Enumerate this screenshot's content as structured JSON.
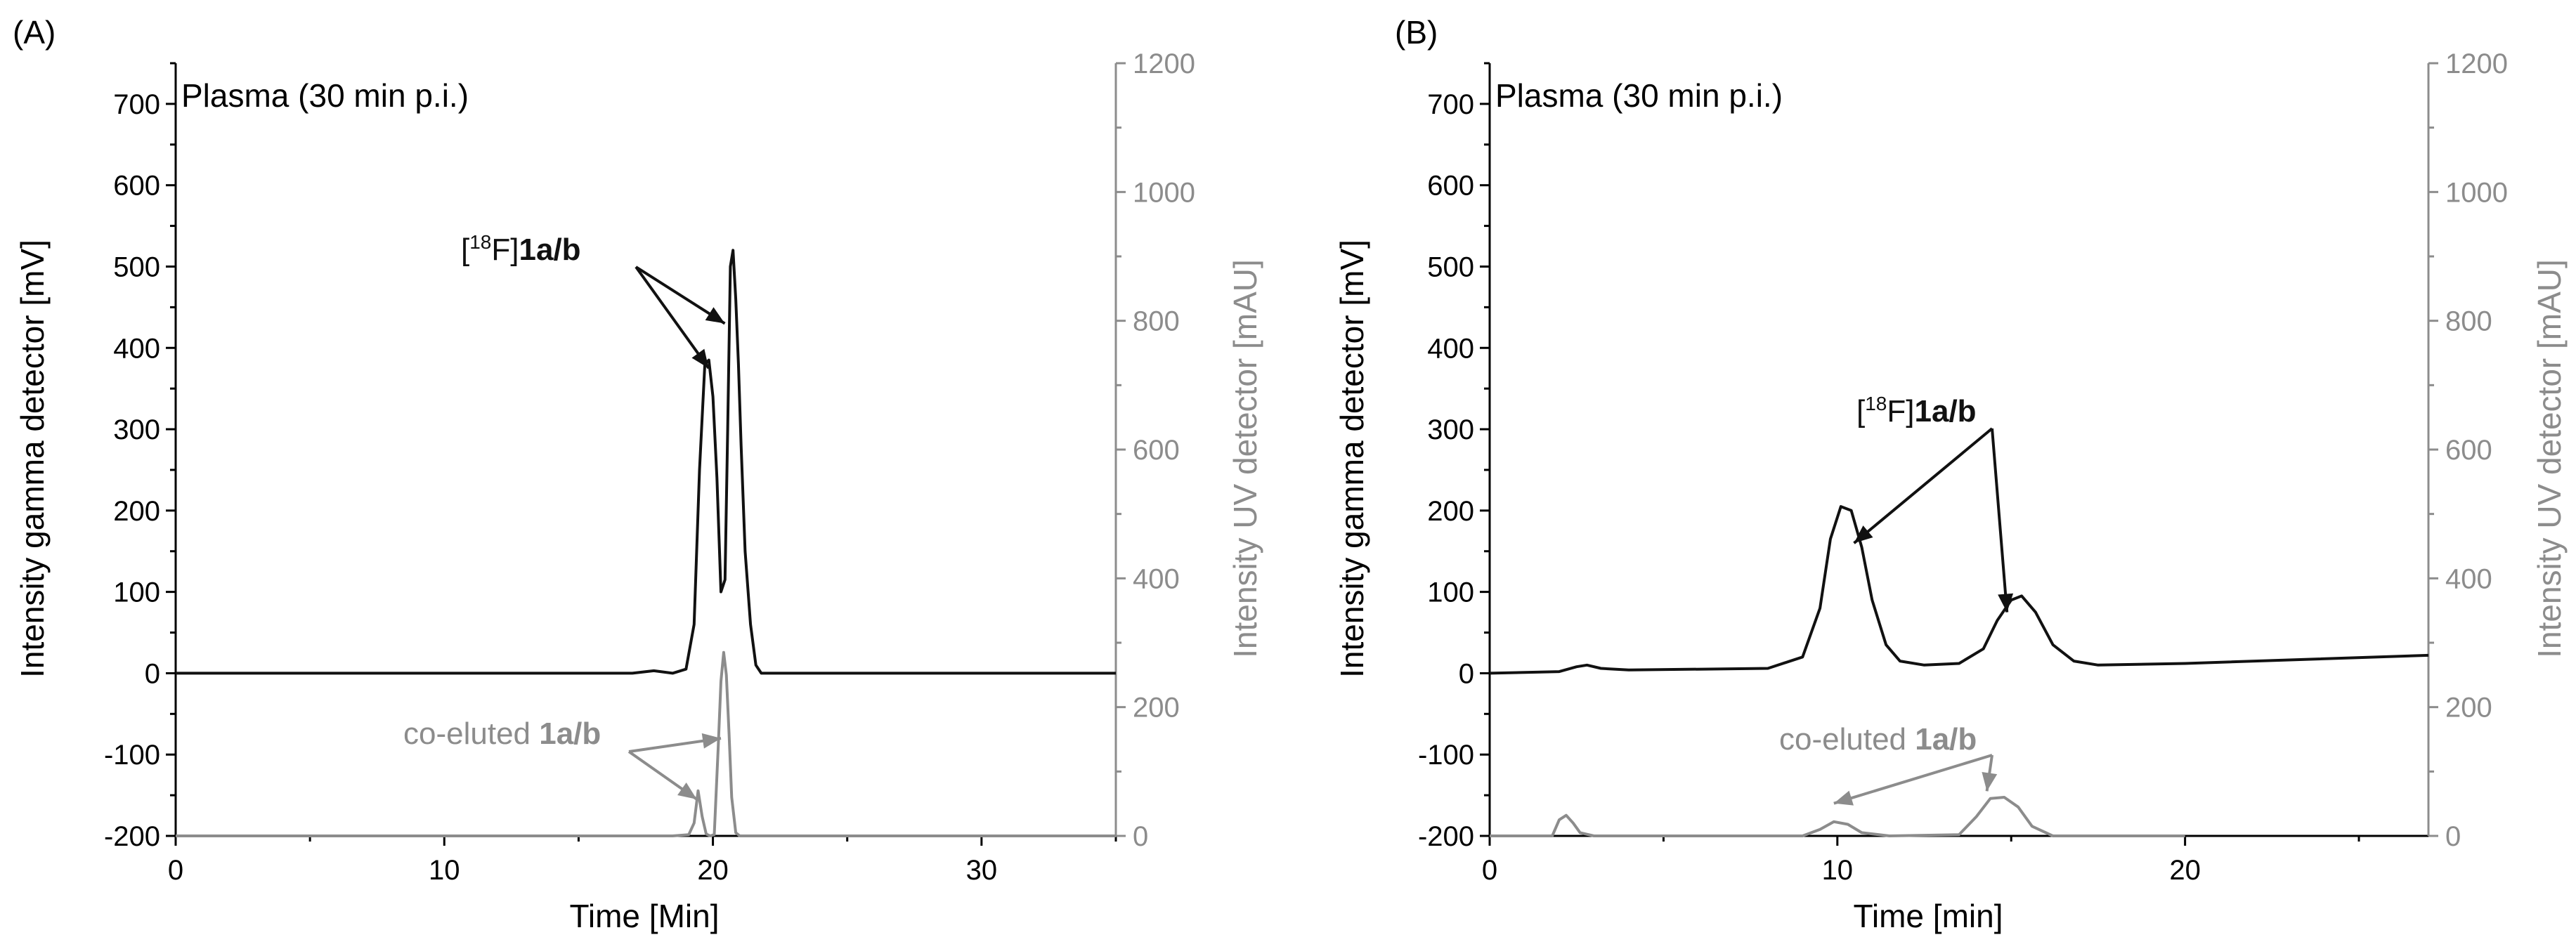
{
  "chart_data": [
    {
      "type": "line",
      "panel_label": "(A)",
      "title": "Plasma (30 min p.i.)",
      "xlabel": "Time [Min]",
      "ylabel_left": "Intensity gamma detector [mV]",
      "ylabel_right": "Intensity UV detector [mAU]",
      "xlim": [
        0,
        35
      ],
      "ylim_left": [
        -200,
        750
      ],
      "ylim_right": [
        0,
        1200
      ],
      "x_ticks": [
        0,
        10,
        20,
        30
      ],
      "y_left_ticks": [
        -200,
        -100,
        0,
        100,
        200,
        300,
        400,
        500,
        600,
        700
      ],
      "y_right_ticks": [
        0,
        200,
        400,
        600,
        800,
        1000,
        1200
      ],
      "colors": {
        "gamma": "#111111",
        "uv": "#8c8c8c"
      },
      "series": [
        {
          "name": "gamma",
          "axis": "left",
          "x": [
            0,
            17.0,
            17.8,
            18.5,
            19.0,
            19.3,
            19.5,
            19.7,
            19.85,
            20.0,
            20.15,
            20.3,
            20.45,
            20.55,
            20.65,
            20.75,
            20.85,
            20.95,
            21.05,
            21.2,
            21.4,
            21.6,
            21.8,
            22.2,
            35
          ],
          "values": [
            0,
            0,
            3,
            0,
            5,
            60,
            250,
            380,
            385,
            340,
            240,
            100,
            115,
            300,
            500,
            520,
            460,
            380,
            280,
            150,
            60,
            10,
            0,
            0,
            0
          ]
        },
        {
          "name": "uv",
          "axis": "right",
          "x": [
            0,
            18.5,
            19.1,
            19.3,
            19.45,
            19.6,
            19.75,
            19.9,
            20.05,
            20.2,
            20.3,
            20.4,
            20.5,
            20.6,
            20.7,
            20.85,
            21.0,
            35
          ],
          "values": [
            0,
            0,
            2,
            20,
            70,
            30,
            3,
            0,
            2,
            140,
            240,
            285,
            250,
            160,
            60,
            5,
            0,
            0
          ]
        }
      ],
      "annotations": [
        {
          "text_prefix": "[",
          "sup": "18",
          "text_mid": "F]",
          "text_bold": "1a/b",
          "arrow_targets": [
            [
              20.0,
              375
            ],
            [
              20.6,
              430
            ]
          ]
        },
        {
          "text": "co-eluted ",
          "text_bold": "1a/b",
          "arrow_targets": [
            [
              19.4,
              -155
            ],
            [
              20.3,
              -80
            ]
          ]
        }
      ]
    },
    {
      "type": "line",
      "panel_label": "(B)",
      "title": "Plasma (30 min p.i.)",
      "xlabel": "Time [min]",
      "ylabel_left": "Intensity gamma detector [mV]",
      "ylabel_right": "Intensity UV detector [mAU]",
      "xlim": [
        0,
        27
      ],
      "ylim_left": [
        -200,
        750
      ],
      "ylim_right": [
        0,
        1200
      ],
      "x_ticks": [
        0,
        10,
        20
      ],
      "y_left_ticks": [
        -200,
        -100,
        0,
        100,
        200,
        300,
        400,
        500,
        600,
        700
      ],
      "y_right_ticks": [
        0,
        200,
        400,
        600,
        800,
        1000,
        1200
      ],
      "colors": {
        "gamma": "#111111",
        "uv": "#8c8c8c"
      },
      "series": [
        {
          "name": "gamma",
          "axis": "left",
          "x": [
            0,
            2.0,
            2.5,
            2.8,
            3.2,
            4.0,
            8.0,
            9.0,
            9.5,
            9.8,
            10.1,
            10.4,
            10.7,
            11.0,
            11.4,
            11.8,
            12.5,
            13.5,
            14.2,
            14.6,
            15.0,
            15.3,
            15.7,
            16.2,
            16.8,
            17.5,
            20.0,
            27
          ],
          "values": [
            0,
            2,
            8,
            10,
            6,
            4,
            6,
            20,
            80,
            165,
            205,
            200,
            155,
            90,
            35,
            15,
            10,
            12,
            30,
            65,
            90,
            95,
            75,
            35,
            15,
            10,
            12,
            22
          ]
        },
        {
          "name": "uv",
          "axis": "right",
          "x": [
            0,
            1.8,
            2.0,
            2.2,
            2.4,
            2.6,
            3.0,
            9.0,
            9.5,
            9.9,
            10.3,
            10.7,
            11.5,
            13.5,
            14.0,
            14.4,
            14.8,
            15.2,
            15.6,
            16.2,
            20.0
          ],
          "values": [
            0,
            0,
            25,
            32,
            20,
            5,
            0,
            0,
            10,
            22,
            18,
            5,
            0,
            2,
            30,
            58,
            60,
            45,
            15,
            0,
            0
          ]
        }
      ],
      "annotations": [
        {
          "text_prefix": "[",
          "sup": "18",
          "text_mid": "F]",
          "text_bold": "1a/b",
          "arrow_targets": [
            [
              10.6,
              160
            ],
            [
              15.0,
              75
            ]
          ]
        },
        {
          "text": "co-eluted ",
          "text_bold": "1a/b",
          "arrow_targets": [
            [
              9.9,
              -160
            ],
            [
              14.3,
              -145
            ]
          ]
        }
      ]
    }
  ]
}
